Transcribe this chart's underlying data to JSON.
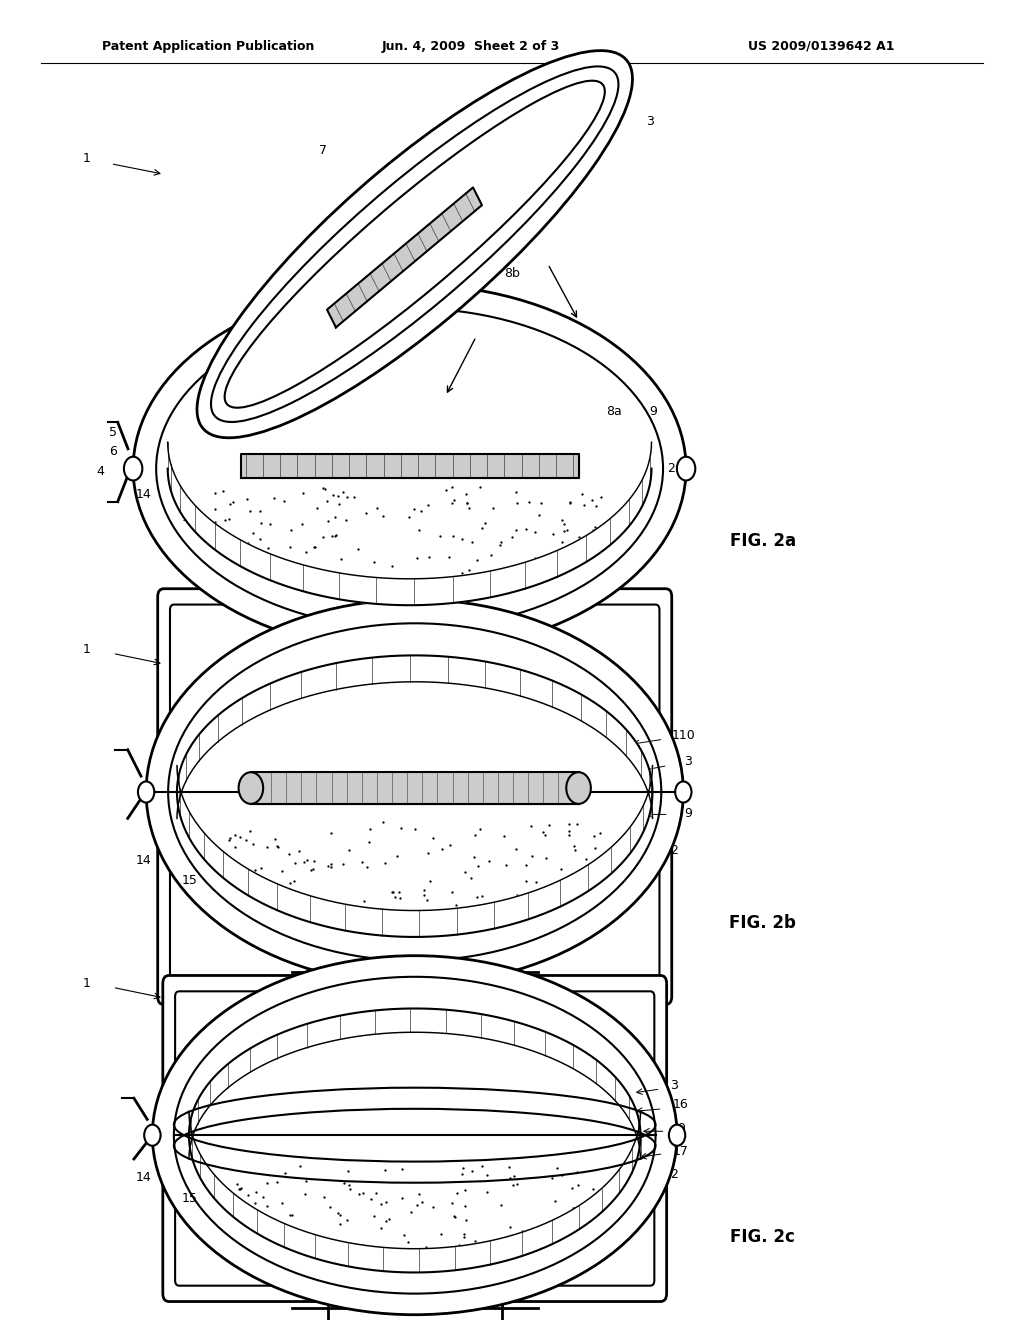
{
  "header_left": "Patent Application Publication",
  "header_middle": "Jun. 4, 2009  Sheet 2 of 3",
  "header_right": "US 2009/0139642 A1",
  "background_color": "#ffffff",
  "line_color": "#000000",
  "lgray": "#cccccc",
  "dgray": "#555555",
  "lw": 1.5,
  "lw2": 2.0
}
